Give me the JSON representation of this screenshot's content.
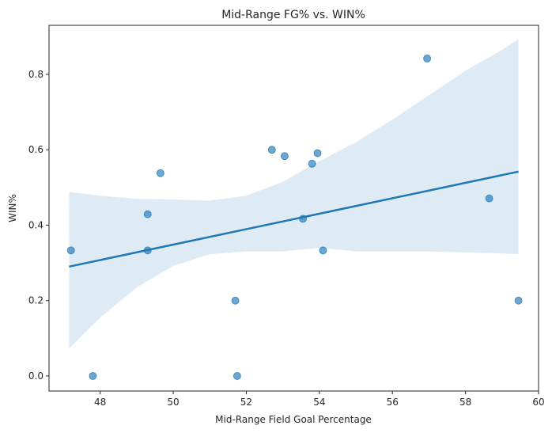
{
  "chart_data": {
    "type": "scatter",
    "title": "Mid-Range FG% vs. WIN%",
    "xlabel": "Mid-Range Field Goal Percentage",
    "ylabel": "WIN%",
    "xlim": [
      46.6,
      60.0
    ],
    "ylim": [
      -0.04,
      0.93
    ],
    "xticks": [
      48,
      50,
      52,
      54,
      56,
      58,
      60
    ],
    "yticks": [
      0.0,
      0.2,
      0.4,
      0.6,
      0.8
    ],
    "x": [
      47.2,
      47.8,
      49.3,
      49.3,
      49.65,
      51.7,
      51.75,
      52.7,
      53.05,
      53.55,
      53.8,
      53.95,
      54.1,
      56.95,
      58.65,
      59.45
    ],
    "y": [
      0.333,
      0.0,
      0.429,
      0.333,
      0.538,
      0.2,
      0.0,
      0.6,
      0.583,
      0.417,
      0.563,
      0.591,
      0.333,
      0.842,
      0.471,
      0.2
    ],
    "regression": {
      "x": [
        47.15,
        59.45
      ],
      "y": [
        0.29,
        0.542
      ]
    },
    "confidence_band": {
      "x": [
        47.15,
        48.0,
        49.0,
        50.0,
        51.0,
        52.0,
        53.0,
        54.0,
        55.0,
        56.0,
        57.0,
        58.0,
        59.0,
        59.45
      ],
      "lower": [
        0.073,
        0.155,
        0.235,
        0.292,
        0.323,
        0.33,
        0.33,
        0.34,
        0.33,
        0.33,
        0.33,
        0.328,
        0.325,
        0.323
      ],
      "upper": [
        0.488,
        0.478,
        0.47,
        0.468,
        0.465,
        0.478,
        0.515,
        0.57,
        0.62,
        0.68,
        0.745,
        0.81,
        0.865,
        0.893
      ]
    },
    "colors": {
      "points": "#1f77b4",
      "line": "#1f77b4",
      "band": "#1f77b4"
    },
    "grid": false
  }
}
